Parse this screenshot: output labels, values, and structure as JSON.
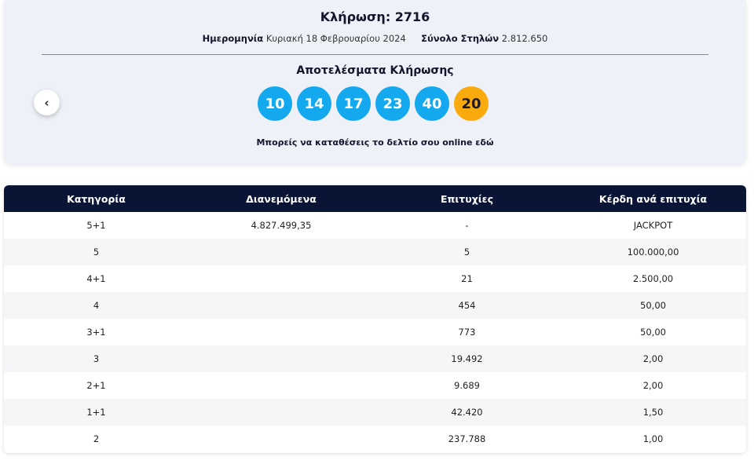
{
  "draw": {
    "title": "Κλήρωση: 2716",
    "date_label": "Ημερομηνία",
    "date_value": "Κυριακή 18 Φεβρουαρίου 2024",
    "columns_label": "Σύνολο Στηλών",
    "columns_value": "2.812.650",
    "results_title": "Αποτελέσματα Κλήρωσης",
    "numbers": [
      "10",
      "14",
      "17",
      "23",
      "40"
    ],
    "bonus": "20",
    "online_text": "Μπορείς να καταθέσεις το δελτίο σου online ",
    "online_link": "εδώ",
    "prev_icon": "chevron-left-icon",
    "colors": {
      "number_ball": "#14a9ee",
      "bonus_ball": "#f9ab0e",
      "header": "#0a1536"
    }
  },
  "table": {
    "headers": [
      "Κατηγορία",
      "Διανεμόμενα",
      "Επιτυχίες",
      "Κέρδη ανά επιτυχία"
    ],
    "rows": [
      [
        "5+1",
        "4.827.499,35",
        "-",
        "JACKPOT"
      ],
      [
        "5",
        "",
        "5",
        "100.000,00"
      ],
      [
        "4+1",
        "",
        "21",
        "2.500,00"
      ],
      [
        "4",
        "",
        "454",
        "50,00"
      ],
      [
        "3+1",
        "",
        "773",
        "50,00"
      ],
      [
        "3",
        "",
        "19.492",
        "2,00"
      ],
      [
        "2+1",
        "",
        "9.689",
        "2,00"
      ],
      [
        "1+1",
        "",
        "42.420",
        "1,50"
      ],
      [
        "2",
        "",
        "237.788",
        "1,00"
      ]
    ]
  }
}
